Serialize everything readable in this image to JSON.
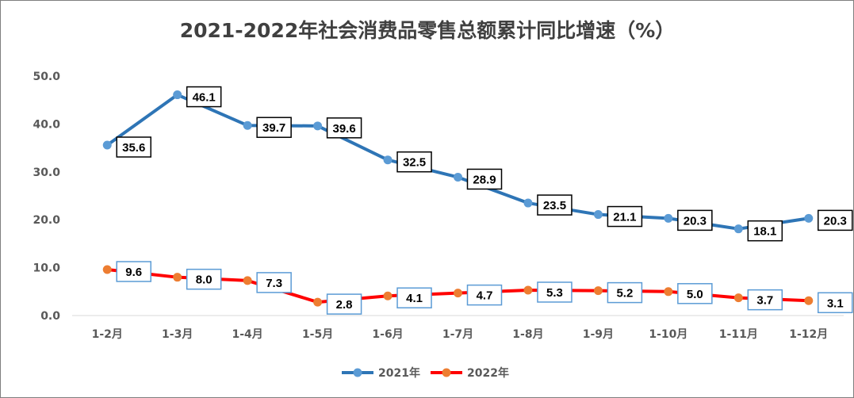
{
  "chart_data": {
    "type": "line",
    "title": "2021-2022年社会消费品零售总额累计同比增速（%）",
    "xlabel": "",
    "ylabel": "",
    "ylim": [
      0,
      50
    ],
    "yticks": [
      "0.0",
      "10.0",
      "20.0",
      "30.0",
      "40.0",
      "50.0"
    ],
    "categories": [
      "1-2月",
      "1-3月",
      "1-4月",
      "1-5月",
      "1-6月",
      "1-7月",
      "1-8月",
      "1-9月",
      "1-10月",
      "1-11月",
      "1-12月"
    ],
    "series": [
      {
        "name": "2021年",
        "line_color": "#2e75b6",
        "marker_color": "#5b9bd5",
        "label_border_color": "#000000",
        "values": [
          35.6,
          46.1,
          39.7,
          39.6,
          32.5,
          28.9,
          23.5,
          21.1,
          20.3,
          18.1,
          20.3
        ],
        "labels": [
          "35.6",
          "46.1",
          "39.7",
          "39.6",
          "32.5",
          "28.9",
          "23.5",
          "21.1",
          "20.3",
          "18.1",
          "20.3"
        ]
      },
      {
        "name": "2022年",
        "line_color": "#ff0000",
        "marker_color": "#ed7d31",
        "label_border_color": "#5b9bd5",
        "values": [
          9.6,
          8.0,
          7.3,
          2.8,
          4.1,
          4.7,
          5.3,
          5.2,
          5.0,
          3.7,
          3.1
        ],
        "labels": [
          "9.6",
          "8.0",
          "7.3",
          "2.8",
          "4.1",
          "4.7",
          "5.3",
          "5.2",
          "5.0",
          "3.7",
          "3.1"
        ]
      }
    ],
    "legend": "bottom-center",
    "grid": false
  }
}
